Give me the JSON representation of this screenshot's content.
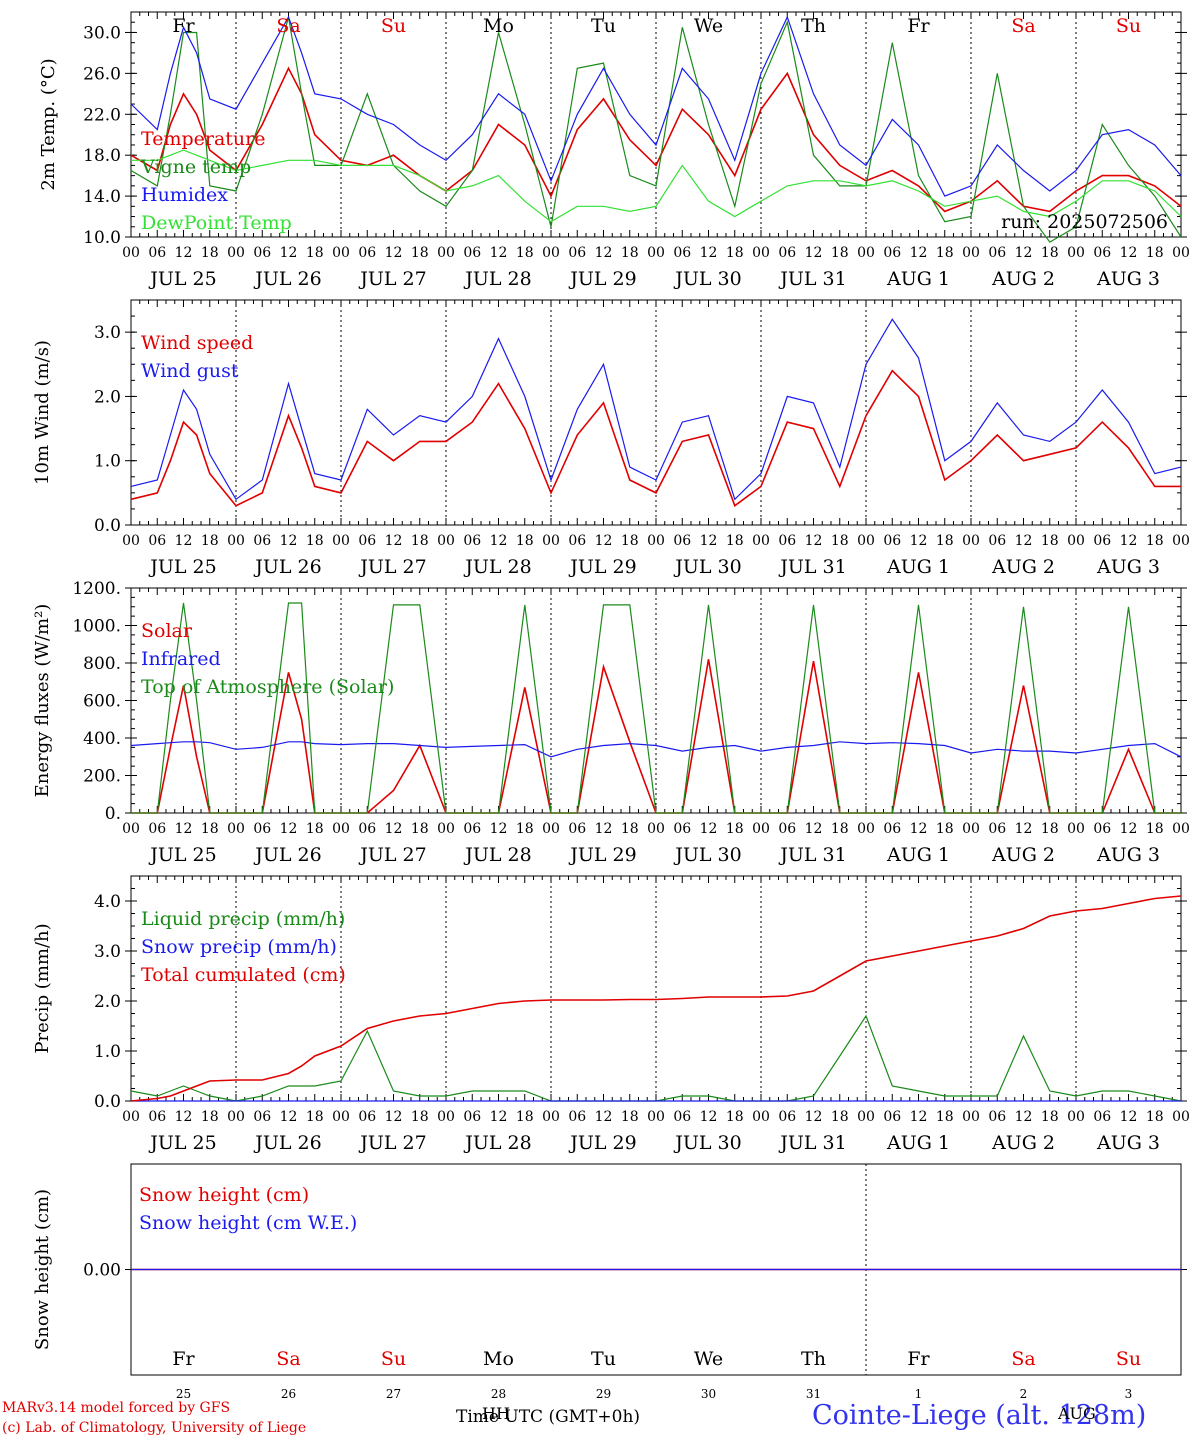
{
  "colors": {
    "red": "#e00000",
    "green": "#1a8a1a",
    "lightgreen": "#33e033",
    "blue": "#1a1aee",
    "black": "#000000",
    "station_blue": "#3333ee"
  },
  "days": [
    {
      "abbr": "Fr",
      "weekend": false,
      "date": "JUL 25",
      "num": "25"
    },
    {
      "abbr": "Sa",
      "weekend": true,
      "date": "JUL 26",
      "num": "26"
    },
    {
      "abbr": "Su",
      "weekend": true,
      "date": "JUL 27",
      "num": "27"
    },
    {
      "abbr": "Mo",
      "weekend": false,
      "date": "JUL 28",
      "num": "28"
    },
    {
      "abbr": "Tu",
      "weekend": false,
      "date": "JUL 29",
      "num": "29"
    },
    {
      "abbr": "We",
      "weekend": false,
      "date": "JUL 30",
      "num": "30"
    },
    {
      "abbr": "Th",
      "weekend": false,
      "date": "JUL 31",
      "num": "31"
    },
    {
      "abbr": "Fr",
      "weekend": false,
      "date": "AUG  1",
      "num": "1"
    },
    {
      "abbr": "Sa",
      "weekend": true,
      "date": "AUG  2",
      "num": "2"
    },
    {
      "abbr": "Su",
      "weekend": true,
      "date": "AUG  3",
      "num": "3"
    }
  ],
  "hour_ticks": [
    "00",
    "06",
    "12",
    "18"
  ],
  "last_hour_tick": "00",
  "run_label": "run: 2025072506",
  "footer": {
    "model": "MARv3.14 model forced by GFS",
    "lab": "(c) Lab. of Climatology, University of Liege",
    "time_axis": "Time UTC (GMT+0h)",
    "overlap_text": "HH",
    "station": "Cointe-Liege (alt. 128m)",
    "overlap_station": "AUG"
  },
  "chart_data": [
    {
      "id": "temperature",
      "type": "line",
      "ylabel": "2m Temp. (°C)",
      "ylim": [
        10,
        32
      ],
      "yticks": [
        "10.0",
        "14.0",
        "18.0",
        "22.0",
        "26.0",
        "30.0"
      ],
      "x_hours": [
        0,
        6,
        9,
        12,
        15,
        18,
        24,
        30,
        36,
        39,
        42,
        48,
        54,
        60,
        66,
        72,
        78,
        84,
        90,
        96,
        102,
        108,
        114,
        120,
        126,
        132,
        138,
        144,
        150,
        156,
        162,
        168,
        174,
        180,
        186,
        192,
        198,
        204,
        210,
        216,
        222,
        228,
        234,
        240
      ],
      "series": [
        {
          "name": "Temperature",
          "color": "red",
          "values": [
            18.0,
            16.5,
            21.0,
            24.0,
            22.0,
            18.5,
            16.5,
            21.0,
            26.5,
            24.0,
            20.0,
            17.5,
            17.0,
            18.0,
            16.0,
            14.5,
            16.5,
            21.0,
            19.0,
            14.0,
            20.5,
            23.5,
            19.5,
            17.0,
            22.5,
            20.0,
            16.0,
            22.5,
            26.0,
            20.0,
            17.0,
            15.5,
            16.5,
            15.0,
            12.5,
            13.5,
            15.5,
            13.0,
            12.5,
            14.5,
            16.0,
            16.0,
            15.0,
            13.0
          ]
        },
        {
          "name": "Vigne temp",
          "color": "green",
          "values": [
            16.5,
            15.0,
            22.0,
            30.0,
            30.0,
            15.0,
            14.5,
            22.0,
            31.5,
            24.0,
            17.0,
            17.0,
            24.0,
            17.0,
            14.5,
            13.0,
            16.5,
            30.0,
            21.0,
            11.0,
            26.5,
            27.0,
            16.0,
            15.0,
            30.5,
            21.0,
            13.0,
            25.0,
            31.0,
            18.0,
            15.0,
            15.0,
            29.0,
            16.0,
            11.5,
            12.0,
            26.0,
            13.0,
            9.5,
            11.0,
            21.0,
            17.0,
            14.0,
            10.0
          ]
        },
        {
          "name": "Humidex",
          "color": "blue",
          "values": [
            23.0,
            20.5,
            26.0,
            30.5,
            28.0,
            23.5,
            22.5,
            27.0,
            31.5,
            28.0,
            24.0,
            23.5,
            22.0,
            21.0,
            19.0,
            17.5,
            20.0,
            24.0,
            22.0,
            15.5,
            22.0,
            26.5,
            22.0,
            19.0,
            26.5,
            23.5,
            17.5,
            26.0,
            31.5,
            24.0,
            19.0,
            17.0,
            21.5,
            19.0,
            14.0,
            15.0,
            19.0,
            16.5,
            14.5,
            16.5,
            20.0,
            20.5,
            19.0,
            16.0
          ]
        },
        {
          "name": "DewPoint Temp",
          "color": "lightgreen",
          "values": [
            17.5,
            17.5,
            18.0,
            18.5,
            18.0,
            17.5,
            16.5,
            17.0,
            17.5,
            17.5,
            17.5,
            17.0,
            17.0,
            17.0,
            16.0,
            14.5,
            15.0,
            16.0,
            13.5,
            11.5,
            13.0,
            13.0,
            12.5,
            13.0,
            17.0,
            13.5,
            12.0,
            13.5,
            15.0,
            15.5,
            15.5,
            15.0,
            15.5,
            14.5,
            13.0,
            13.5,
            14.0,
            12.5,
            12.0,
            13.5,
            15.5,
            15.5,
            14.5,
            12.0
          ]
        }
      ],
      "show_run": true
    },
    {
      "id": "wind",
      "type": "line",
      "ylabel": "10m Wind (m/s)",
      "ylim": [
        0,
        3.5
      ],
      "yticks": [
        "0.0",
        "1.0",
        "2.0",
        "3.0"
      ],
      "x_hours": [
        0,
        6,
        9,
        12,
        15,
        18,
        24,
        30,
        36,
        39,
        42,
        48,
        54,
        60,
        66,
        72,
        78,
        84,
        90,
        96,
        102,
        108,
        114,
        120,
        126,
        132,
        138,
        144,
        150,
        156,
        162,
        168,
        174,
        180,
        186,
        192,
        198,
        204,
        210,
        216,
        222,
        228,
        234,
        240
      ],
      "series": [
        {
          "name": "Wind speed",
          "color": "red",
          "values": [
            0.4,
            0.5,
            1.0,
            1.6,
            1.4,
            0.8,
            0.3,
            0.5,
            1.7,
            1.2,
            0.6,
            0.5,
            1.3,
            1.0,
            1.3,
            1.3,
            1.6,
            2.2,
            1.5,
            0.5,
            1.4,
            1.9,
            0.7,
            0.5,
            1.3,
            1.4,
            0.3,
            0.6,
            1.6,
            1.5,
            0.6,
            1.7,
            2.4,
            2.0,
            0.7,
            1.0,
            1.4,
            1.0,
            1.1,
            1.2,
            1.6,
            1.2,
            0.6,
            0.6
          ]
        },
        {
          "name": "Wind gust",
          "color": "blue",
          "values": [
            0.6,
            0.7,
            1.4,
            2.1,
            1.8,
            1.1,
            0.4,
            0.7,
            2.2,
            1.5,
            0.8,
            0.7,
            1.8,
            1.4,
            1.7,
            1.6,
            2.0,
            2.9,
            2.0,
            0.7,
            1.8,
            2.5,
            0.9,
            0.7,
            1.6,
            1.7,
            0.4,
            0.8,
            2.0,
            1.9,
            0.9,
            2.5,
            3.2,
            2.6,
            1.0,
            1.3,
            1.9,
            1.4,
            1.3,
            1.6,
            2.1,
            1.6,
            0.8,
            0.9
          ]
        }
      ],
      "show_run": false
    },
    {
      "id": "energy",
      "type": "line",
      "ylabel": "Energy fluxes (W/m²)",
      "ylim": [
        0,
        1200
      ],
      "yticks": [
        "0.",
        "200.",
        "400.",
        "600.",
        "800.",
        "1000.",
        "1200."
      ],
      "x_hours": [
        0,
        6,
        9,
        12,
        15,
        18,
        24,
        30,
        36,
        39,
        42,
        48,
        54,
        60,
        66,
        72,
        78,
        84,
        90,
        96,
        102,
        108,
        114,
        120,
        126,
        132,
        138,
        144,
        150,
        156,
        162,
        168,
        174,
        180,
        186,
        192,
        198,
        204,
        210,
        216,
        222,
        228,
        234,
        240
      ],
      "series": [
        {
          "name": "Solar",
          "color": "red",
          "values": [
            0,
            0,
            350,
            680,
            300,
            0,
            0,
            0,
            750,
            500,
            0,
            0,
            0,
            120,
            360,
            0,
            0,
            0,
            670,
            0,
            0,
            780,
            380,
            0,
            0,
            820,
            0,
            0,
            0,
            810,
            0,
            0,
            0,
            750,
            0,
            0,
            0,
            680,
            0,
            0,
            0,
            340,
            0,
            0
          ]
        },
        {
          "name": "Infrared",
          "color": "blue",
          "values": [
            360,
            370,
            375,
            380,
            380,
            375,
            340,
            350,
            380,
            380,
            370,
            365,
            370,
            370,
            360,
            350,
            355,
            360,
            365,
            300,
            340,
            360,
            370,
            360,
            330,
            350,
            360,
            330,
            350,
            360,
            380,
            370,
            375,
            370,
            360,
            320,
            340,
            330,
            330,
            320,
            340,
            360,
            370,
            300
          ]
        },
        {
          "name": "Top of Atmosphere (Solar)",
          "color": "green",
          "values": [
            0,
            0,
            600,
            1120,
            600,
            0,
            0,
            0,
            1120,
            1120,
            0,
            0,
            0,
            1110,
            1110,
            0,
            0,
            0,
            1110,
            0,
            0,
            1110,
            1110,
            0,
            0,
            1110,
            0,
            0,
            0,
            1110,
            0,
            0,
            0,
            1110,
            0,
            0,
            0,
            1100,
            0,
            0,
            0,
            1100,
            0,
            0
          ]
        }
      ],
      "show_run": false
    },
    {
      "id": "precip",
      "type": "line",
      "ylabel": "Precip (mm/h)",
      "ylim": [
        0,
        4.5
      ],
      "yticks": [
        "0.0",
        "1.0",
        "2.0",
        "3.0",
        "4.0"
      ],
      "x_hours": [
        0,
        6,
        9,
        12,
        15,
        18,
        24,
        30,
        36,
        39,
        42,
        48,
        54,
        60,
        66,
        72,
        78,
        84,
        90,
        96,
        102,
        108,
        114,
        120,
        126,
        132,
        138,
        144,
        150,
        156,
        162,
        168,
        174,
        180,
        186,
        192,
        198,
        204,
        210,
        216,
        222,
        228,
        234,
        240
      ],
      "series": [
        {
          "name": "Liquid precip (mm/h)",
          "color": "green",
          "values": [
            0.2,
            0.1,
            0.2,
            0.3,
            0.2,
            0.1,
            0,
            0.1,
            0.3,
            0.3,
            0.3,
            0.4,
            1.4,
            0.2,
            0.1,
            0.1,
            0.2,
            0.2,
            0.2,
            0,
            0,
            0,
            0,
            0,
            0.1,
            0.1,
            0,
            0,
            0,
            0.1,
            0.9,
            1.7,
            0.3,
            0.2,
            0.1,
            0.1,
            0.1,
            1.3,
            0.2,
            0.1,
            0.2,
            0.2,
            0.1,
            0
          ]
        },
        {
          "name": "Snow precip (mm/h)",
          "color": "blue",
          "values": [
            0,
            0,
            0,
            0,
            0,
            0,
            0,
            0,
            0,
            0,
            0,
            0,
            0,
            0,
            0,
            0,
            0,
            0,
            0,
            0,
            0,
            0,
            0,
            0,
            0,
            0,
            0,
            0,
            0,
            0,
            0,
            0,
            0,
            0,
            0,
            0,
            0,
            0,
            0,
            0,
            0,
            0,
            0,
            0
          ]
        },
        {
          "name": "Total cumulated (cm)",
          "color": "red",
          "values": [
            0.0,
            0.05,
            0.1,
            0.2,
            0.3,
            0.4,
            0.42,
            0.42,
            0.55,
            0.7,
            0.9,
            1.1,
            1.45,
            1.6,
            1.7,
            1.75,
            1.85,
            1.95,
            2.0,
            2.02,
            2.02,
            2.02,
            2.03,
            2.03,
            2.05,
            2.08,
            2.08,
            2.08,
            2.1,
            2.2,
            2.5,
            2.8,
            2.9,
            3.0,
            3.1,
            3.2,
            3.3,
            3.45,
            3.7,
            3.8,
            3.85,
            3.95,
            4.05,
            4.1
          ]
        }
      ],
      "show_run": false
    },
    {
      "id": "snow",
      "type": "line",
      "ylabel": "Snow height (cm)",
      "ylim": [
        -1,
        1
      ],
      "yticks": [
        "0.00"
      ],
      "x_hours": [
        0,
        240
      ],
      "series": [
        {
          "name": "Snow height (cm)",
          "color": "red",
          "values": [
            0,
            0
          ]
        },
        {
          "name": "Snow height (cm W.E.)",
          "color": "blue",
          "values": [
            0,
            0
          ]
        }
      ],
      "show_run": false
    }
  ]
}
